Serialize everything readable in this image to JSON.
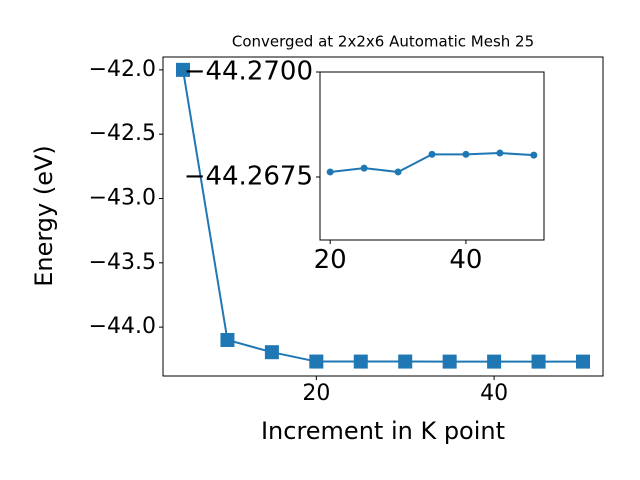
{
  "chart_data": [
    {
      "type": "line",
      "title": "Converged at 2x2x6 Automatic Mesh 25",
      "x_label": "Increment in K point",
      "y_label": "Energy (eV)",
      "x": [
        5,
        10,
        15,
        20,
        25,
        30,
        35,
        40,
        45,
        50
      ],
      "series": [
        {
          "color": "#1f77b4",
          "marker": "square",
          "values": [
            -42.0,
            -44.1,
            -44.195,
            -44.26762,
            -44.26771,
            -44.26762,
            -44.26804,
            -44.26804,
            -44.26807,
            -44.26802
          ]
        }
      ],
      "xlim": [
        2.75,
        52.25
      ],
      "xticks": [
        20,
        40
      ],
      "ylim": [
        -44.38,
        -41.9
      ],
      "yticks": [
        {
          "value": -42.0,
          "label": "−42.0"
        },
        {
          "value": -42.5,
          "label": "−42.5"
        },
        {
          "value": -43.0,
          "label": "−43.0"
        },
        {
          "value": -43.5,
          "label": "−43.5"
        },
        {
          "value": -44.0,
          "label": "−44.0"
        }
      ]
    },
    {
      "type": "line",
      "x": [
        20,
        25,
        30,
        35,
        40,
        45,
        50
      ],
      "series": [
        {
          "color": "#1f77b4",
          "marker": "circle",
          "values": [
            -44.26762,
            -44.26771,
            -44.26762,
            -44.26804,
            -44.26804,
            -44.26807,
            -44.26802
          ]
        }
      ],
      "xlim": [
        18.5,
        51.5
      ],
      "xticks": [
        20,
        40
      ],
      "ylim": [
        -44.266,
        -44.27
      ],
      "yticks": [
        {
          "value": -44.27,
          "label": "−44.2700"
        },
        {
          "value": -44.2675,
          "label": "−44.2675"
        }
      ]
    }
  ]
}
